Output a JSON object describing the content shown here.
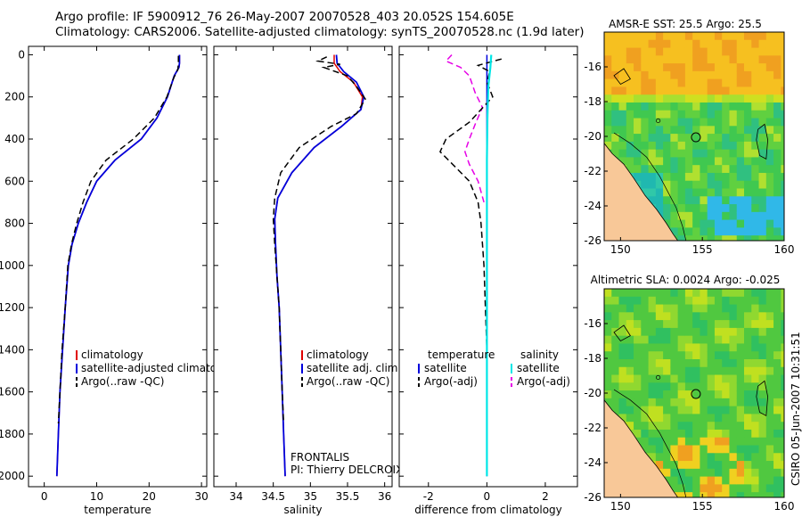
{
  "header": {
    "line1": "Argo profile: IF 5900912_76 26-May-2007 20070528_403 20.052S 154.605E",
    "line2": "Climatology: CARS2006. Satellite-adjusted climatology: synTS_20070528.nc (1.9d later)"
  },
  "stamp": "CSIRO 05-Jun-2007 10:31:51",
  "chart_data": [
    {
      "id": "temperature",
      "type": "line",
      "xlabel": "temperature",
      "ylabel": "",
      "xlim": [
        -3,
        31
      ],
      "ylim": [
        2050,
        -40
      ],
      "xticks": [
        0,
        10,
        20,
        30
      ],
      "yticks": [
        0,
        200,
        400,
        600,
        800,
        1000,
        1200,
        1400,
        1600,
        1800,
        2000
      ],
      "legend": [
        "climatology",
        "satellite-adjusted climatology",
        "Argo(..raw -QC)"
      ],
      "series": [
        {
          "name": "climatology",
          "color": "#e00000",
          "dash": "",
          "width": 1.5,
          "points": [
            [
              25.8,
              0
            ],
            [
              25.8,
              40
            ],
            [
              25.7,
              60
            ],
            [
              24.8,
              100
            ],
            [
              23.5,
              200
            ],
            [
              21.5,
              300
            ],
            [
              18.5,
              400
            ],
            [
              13.5,
              500
            ],
            [
              10.0,
              600
            ],
            [
              8.1,
              700
            ],
            [
              6.5,
              800
            ],
            [
              5.3,
              900
            ],
            [
              4.6,
              1000
            ],
            [
              4.0,
              1200
            ],
            [
              3.5,
              1400
            ],
            [
              3.0,
              1600
            ],
            [
              2.7,
              1800
            ],
            [
              2.4,
              2000
            ]
          ]
        },
        {
          "name": "satellite-adjusted climatology",
          "color": "#0000dd",
          "dash": "",
          "width": 1.8,
          "points": [
            [
              25.8,
              0
            ],
            [
              25.8,
              40
            ],
            [
              25.7,
              60
            ],
            [
              24.8,
              100
            ],
            [
              23.5,
              200
            ],
            [
              21.5,
              300
            ],
            [
              18.5,
              400
            ],
            [
              13.5,
              500
            ],
            [
              10.0,
              600
            ],
            [
              8.1,
              700
            ],
            [
              6.5,
              800
            ],
            [
              5.3,
              900
            ],
            [
              4.6,
              1000
            ],
            [
              4.0,
              1200
            ],
            [
              3.5,
              1400
            ],
            [
              3.0,
              1600
            ],
            [
              2.7,
              1800
            ],
            [
              2.4,
              2000
            ]
          ]
        },
        {
          "name": "Argo(..raw -QC)",
          "color": "#000000",
          "dash": "7,4",
          "width": 1.5,
          "points": [
            [
              25.6,
              5
            ],
            [
              25.6,
              40
            ],
            [
              25.5,
              70
            ],
            [
              24.7,
              110
            ],
            [
              23.4,
              200
            ],
            [
              21.0,
              300
            ],
            [
              17.0,
              400
            ],
            [
              11.8,
              500
            ],
            [
              8.9,
              600
            ],
            [
              7.4,
              700
            ],
            [
              6.2,
              800
            ],
            [
              5.2,
              900
            ],
            [
              4.5,
              1000
            ],
            [
              4.0,
              1200
            ],
            [
              3.4,
              1400
            ],
            [
              3.0,
              1600
            ],
            [
              2.7,
              1750
            ]
          ]
        }
      ]
    },
    {
      "id": "salinity",
      "type": "line",
      "xlabel": "salinity",
      "ylabel": "",
      "xlim": [
        33.7,
        36.1
      ],
      "ylim": [
        2050,
        -40
      ],
      "xticks": [
        34,
        34.5,
        35,
        35.5,
        36
      ],
      "legend": [
        "climatology",
        "satellite adj. clim.",
        "Argo(..raw -QC)"
      ],
      "annotation": [
        "FRONTALIS",
        "PI: Thierry DELCROIX"
      ],
      "series": [
        {
          "name": "climatology",
          "color": "#e00000",
          "dash": "",
          "width": 1.5,
          "points": [
            [
              35.32,
              0
            ],
            [
              35.32,
              40
            ],
            [
              35.4,
              80
            ],
            [
              35.58,
              130
            ],
            [
              35.7,
              200
            ],
            [
              35.68,
              260
            ],
            [
              35.42,
              340
            ],
            [
              35.05,
              440
            ],
            [
              34.75,
              560
            ],
            [
              34.56,
              680
            ],
            [
              34.52,
              780
            ],
            [
              34.53,
              900
            ],
            [
              34.55,
              1050
            ],
            [
              34.58,
              1200
            ],
            [
              34.6,
              1400
            ],
            [
              34.62,
              1600
            ],
            [
              34.64,
              1800
            ],
            [
              34.66,
              2000
            ]
          ]
        },
        {
          "name": "satellite adj. clim.",
          "color": "#0000dd",
          "dash": "",
          "width": 1.8,
          "points": [
            [
              35.35,
              0
            ],
            [
              35.36,
              40
            ],
            [
              35.45,
              80
            ],
            [
              35.62,
              130
            ],
            [
              35.72,
              200
            ],
            [
              35.68,
              260
            ],
            [
              35.42,
              340
            ],
            [
              35.05,
              440
            ],
            [
              34.75,
              560
            ],
            [
              34.56,
              680
            ],
            [
              34.52,
              780
            ],
            [
              34.53,
              900
            ],
            [
              34.55,
              1050
            ],
            [
              34.58,
              1200
            ],
            [
              34.6,
              1400
            ],
            [
              34.62,
              1600
            ],
            [
              34.64,
              1800
            ],
            [
              34.66,
              2000
            ]
          ]
        },
        {
          "name": "Argo(..raw -QC)",
          "color": "#000000",
          "dash": "7,4",
          "width": 1.5,
          "points": [
            [
              35.22,
              10
            ],
            [
              35.1,
              30
            ],
            [
              35.4,
              45
            ],
            [
              35.18,
              60
            ],
            [
              35.5,
              100
            ],
            [
              35.62,
              150
            ],
            [
              35.74,
              210
            ],
            [
              35.62,
              280
            ],
            [
              35.28,
              340
            ],
            [
              34.85,
              440
            ],
            [
              34.6,
              560
            ],
            [
              34.52,
              680
            ],
            [
              34.5,
              780
            ],
            [
              34.52,
              900
            ],
            [
              34.55,
              1050
            ],
            [
              34.58,
              1200
            ],
            [
              34.6,
              1400
            ],
            [
              34.62,
              1600
            ],
            [
              34.64,
              1750
            ]
          ]
        }
      ]
    },
    {
      "id": "difference",
      "type": "line",
      "xlabel": "difference from climatology",
      "ylabel": "",
      "xlim": [
        -3,
        3.1
      ],
      "ylim": [
        2050,
        -40
      ],
      "xticks": [
        -2,
        0,
        2
      ],
      "legend_columns": [
        {
          "header": "temperature",
          "items": [
            {
              "label": "satellite",
              "color": "#0000dd",
              "dash": ""
            },
            {
              "label": "Argo(-adj)",
              "color": "#000000",
              "dash": "7,4"
            }
          ]
        },
        {
          "header": "salinity",
          "items": [
            {
              "label": "satellite",
              "color": "#00e6e6",
              "dash": ""
            },
            {
              "label": "Argo(-adj)",
              "color": "#e600e6",
              "dash": "7,4"
            }
          ]
        }
      ],
      "series": [
        {
          "name": "temperature satellite",
          "color": "#0000dd",
          "dash": "",
          "width": 1.5,
          "points": [
            [
              0.0,
              0
            ],
            [
              0.0,
              2000
            ]
          ]
        },
        {
          "name": "salinity Argo(-adj)",
          "color": "#e600e6",
          "dash": "7,4",
          "width": 1.5,
          "points": [
            [
              -1.2,
              0
            ],
            [
              -1.4,
              30
            ],
            [
              -0.9,
              60
            ],
            [
              -0.6,
              100
            ],
            [
              -0.4,
              180
            ],
            [
              -0.15,
              250
            ],
            [
              -0.4,
              330
            ],
            [
              -0.6,
              400
            ],
            [
              -0.75,
              460
            ],
            [
              -0.6,
              520
            ],
            [
              -0.3,
              600
            ],
            [
              -0.1,
              700
            ]
          ]
        },
        {
          "name": "temperature Argo(-adj)",
          "color": "#000000",
          "dash": "7,4",
          "width": 1.5,
          "points": [
            [
              0.5,
              20
            ],
            [
              -0.3,
              50
            ],
            [
              0.1,
              80
            ],
            [
              0.0,
              130
            ],
            [
              0.2,
              200
            ],
            [
              -0.2,
              260
            ],
            [
              -0.6,
              320
            ],
            [
              -1.4,
              400
            ],
            [
              -1.6,
              460
            ],
            [
              -1.1,
              530
            ],
            [
              -0.6,
              600
            ],
            [
              -0.3,
              700
            ],
            [
              -0.2,
              800
            ],
            [
              -0.1,
              1000
            ],
            [
              -0.05,
              1200
            ],
            [
              0.0,
              1400
            ]
          ]
        },
        {
          "name": "salinity satellite",
          "color": "#00e6e6",
          "dash": "",
          "width": 2.2,
          "points": [
            [
              0.15,
              0
            ],
            [
              0.12,
              60
            ],
            [
              0.05,
              150
            ],
            [
              0.02,
              300
            ],
            [
              0.0,
              500
            ],
            [
              0.0,
              2000
            ]
          ]
        }
      ]
    },
    {
      "id": "sst-map",
      "type": "heatmap",
      "title": "AMSR-E SST: 25.5 Argo: 25.5",
      "xlim": [
        149,
        160
      ],
      "ylim": [
        -26,
        -14
      ],
      "xticks": [
        150,
        155,
        160
      ],
      "yticks": [
        -16,
        -18,
        -20,
        -22,
        -24,
        -26
      ],
      "profile_location": [
        154.605,
        -20.052
      ]
    },
    {
      "id": "sla-map",
      "type": "heatmap",
      "title": "Altimetric SLA: 0.0024 Argo: -0.025",
      "xlim": [
        149,
        160
      ],
      "ylim": [
        -26,
        -14
      ],
      "xticks": [
        150,
        155,
        160
      ],
      "yticks": [
        -16,
        -18,
        -20,
        -22,
        -24,
        -26
      ],
      "profile_location": [
        154.605,
        -20.052
      ]
    }
  ]
}
